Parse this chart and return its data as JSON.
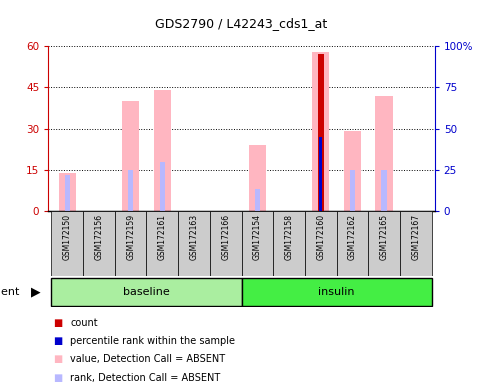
{
  "title": "GDS2790 / L42243_cds1_at",
  "samples": [
    "GSM172150",
    "GSM172156",
    "GSM172159",
    "GSM172161",
    "GSM172163",
    "GSM172166",
    "GSM172154",
    "GSM172158",
    "GSM172160",
    "GSM172162",
    "GSM172165",
    "GSM172167"
  ],
  "value_bars": [
    14,
    0,
    40,
    44,
    0,
    0,
    24,
    0,
    58,
    29,
    42,
    0
  ],
  "rank_bars": [
    13,
    0,
    15,
    18,
    0,
    0,
    8,
    0,
    0,
    15,
    15,
    0
  ],
  "count_bars": [
    0,
    0,
    0,
    0,
    0,
    0,
    0,
    0,
    57,
    0,
    0,
    0
  ],
  "percentile_bars_right": [
    0,
    0,
    0,
    0,
    0,
    0,
    0,
    0,
    45,
    0,
    0,
    0
  ],
  "ylim_left": [
    0,
    60
  ],
  "ylim_right": [
    0,
    100
  ],
  "yticks_left": [
    0,
    15,
    30,
    45,
    60
  ],
  "yticks_right": [
    0,
    25,
    50,
    75,
    100
  ],
  "ytick_labels_left": [
    "0",
    "15",
    "30",
    "45",
    "60"
  ],
  "ytick_labels_right": [
    "0",
    "25",
    "50",
    "75",
    "100%"
  ],
  "color_value": "#FFB6C1",
  "color_rank": "#B8B8FF",
  "color_count": "#CC0000",
  "color_percentile": "#0000CC",
  "bar_width": 0.55,
  "baseline_color": "#AAEEA0",
  "insulin_color": "#44EE44",
  "sample_box_color": "#CCCCCC"
}
